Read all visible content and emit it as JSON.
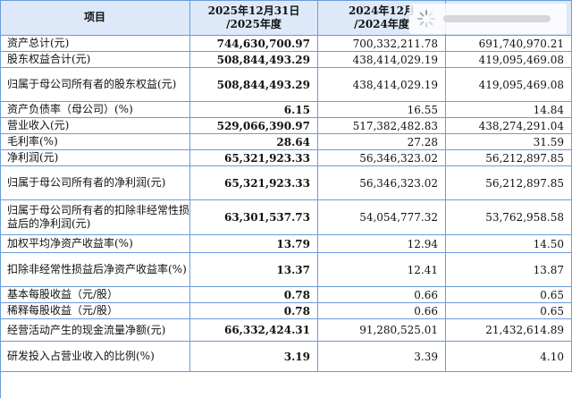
{
  "header": {
    "item": "项目",
    "col1_line1": "2025年12月31日",
    "col1_line2": "/2025年度",
    "col2_line1": "2024年12月",
    "col2_line2": "/2024年度",
    "col3_line1": "",
    "col3_line2": ""
  },
  "rows": [
    {
      "label": "资产总计(元)",
      "v1": "744,630,700.97",
      "v2": "700,332,211.78",
      "v3": "691,740,970.21"
    },
    {
      "label": "股东权益合计(元)",
      "v1": "508,844,493.29",
      "v2": "438,414,029.19",
      "v3": "419,095,469.08"
    },
    {
      "label": "归属于母公司所有者的股东权益(元)",
      "v1": "508,844,493.29",
      "v2": "438,414,029.19",
      "v3": "419,095,469.08"
    },
    {
      "label": "资产负债率（母公司）(%)",
      "v1": "6.15",
      "v2": "16.55",
      "v3": "14.84"
    },
    {
      "label": "营业收入(元)",
      "v1": "529,066,390.97",
      "v2": "517,382,482.83",
      "v3": "438,274,291.04"
    },
    {
      "label": "毛利率(%)",
      "v1": "28.64",
      "v2": "27.28",
      "v3": "31.59"
    },
    {
      "label": "净利润(元)",
      "v1": "65,321,923.33",
      "v2": "56,346,323.02",
      "v3": "56,212,897.85"
    },
    {
      "label": "归属于母公司所有者的净利润(元)",
      "v1": "65,321,923.33",
      "v2": "56,346,323.02",
      "v3": "56,212,897.85"
    },
    {
      "label": "归属于母公司所有者的扣除非经常性损益后的净利润(元)",
      "v1": "63,301,537.73",
      "v2": "54,054,777.32",
      "v3": "53,762,958.58"
    },
    {
      "label": "加权平均净资产收益率(%)",
      "v1": "13.79",
      "v2": "12.94",
      "v3": "14.50"
    },
    {
      "label": "扣除非经常性损益后净资产收益率(%)",
      "v1": "13.37",
      "v2": "12.41",
      "v3": "13.87"
    },
    {
      "label": "基本每股收益（元/股）",
      "v1": "0.78",
      "v2": "0.66",
      "v3": "0.65"
    },
    {
      "label": "稀释每股收益（元/股）",
      "v1": "0.78",
      "v2": "0.66",
      "v3": "0.65"
    },
    {
      "label": "经营活动产生的现金流量净额(元)",
      "v1": "66,332,424.31",
      "v2": "91,280,525.01",
      "v3": "21,432,614.89"
    },
    {
      "label": "研发投入占营业收入的比例(%)",
      "v1": "3.19",
      "v2": "3.39",
      "v3": "4.10"
    }
  ],
  "watermark_icon": "loading-spinner-icon",
  "colors": {
    "header_bg": "#dde9f8",
    "border": "#6a9cd9"
  }
}
